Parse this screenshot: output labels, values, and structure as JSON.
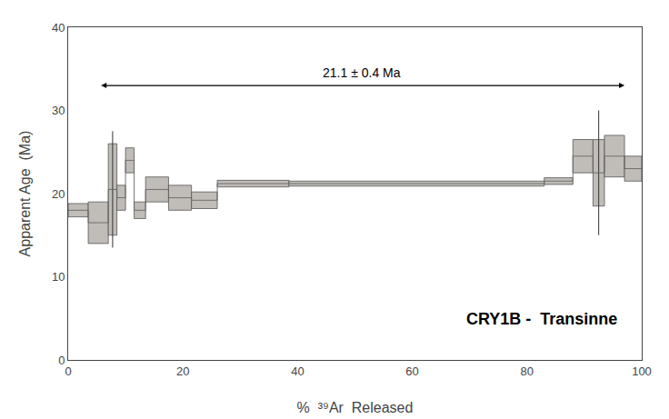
{
  "chart_data": {
    "type": "step",
    "title": "CRY1B -  Transinne",
    "x_label": "%  ³⁹Ar  Released",
    "y_label": "Apparent Age  (Ma)",
    "xlim": [
      0,
      100
    ],
    "ylim": [
      0,
      40
    ],
    "xticks": [
      0,
      20,
      40,
      60,
      80,
      100
    ],
    "yticks": [
      0,
      10,
      20,
      30,
      40
    ],
    "grid": false,
    "color": "#c0bdb8",
    "x_start": [
      0.0,
      3.5,
      7.0,
      8.5,
      10.0,
      11.5,
      13.5,
      17.5,
      21.5,
      26.0,
      38.5,
      83.0,
      88.0,
      91.5,
      93.5,
      97.0
    ],
    "x_end": [
      3.5,
      7.0,
      8.5,
      10.0,
      11.5,
      13.5,
      17.5,
      21.5,
      26.0,
      38.5,
      83.0,
      88.0,
      91.5,
      93.5,
      97.0,
      100.0
    ],
    "values": [
      18.0,
      16.5,
      20.5,
      19.5,
      24.0,
      18.0,
      20.5,
      19.5,
      19.2,
      21.2,
      21.2,
      21.5,
      24.5,
      22.5,
      24.5,
      23.0
    ],
    "errors": [
      0.8,
      2.5,
      5.5,
      1.5,
      1.5,
      1.0,
      1.5,
      1.5,
      1.0,
      0.4,
      0.3,
      0.4,
      2.0,
      4.0,
      2.5,
      1.5
    ],
    "extended_errors": [
      null,
      null,
      7.0,
      null,
      null,
      null,
      null,
      null,
      null,
      null,
      null,
      null,
      null,
      7.5,
      null,
      null
    ],
    "plateau": {
      "label": "21.1 ± 0.4 Ma",
      "x1": 5.5,
      "x2": 97.0,
      "y": 33.0
    }
  }
}
